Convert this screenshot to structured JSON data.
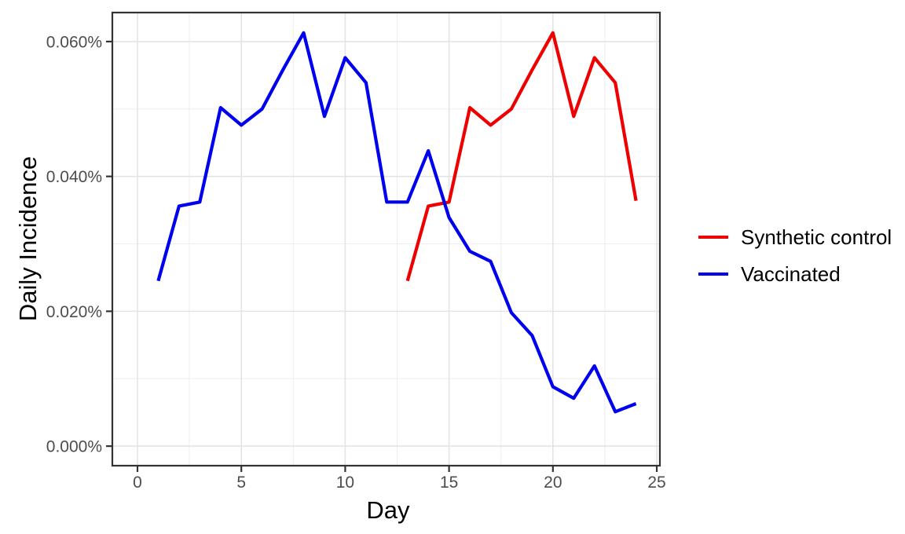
{
  "chart_data": {
    "type": "line",
    "title": "",
    "xlabel": "Day",
    "ylabel": "Daily Incidence",
    "x_ticks": [
      0,
      5,
      10,
      15,
      20,
      25
    ],
    "x_minor_ticks": [
      2.5,
      7.5,
      12.5,
      17.5,
      22.5
    ],
    "y_ticks": [
      {
        "value": 0.0,
        "label": "0.000%"
      },
      {
        "value": 0.02,
        "label": "0.020%"
      },
      {
        "value": 0.04,
        "label": "0.040%"
      },
      {
        "value": 0.06,
        "label": "0.060%"
      }
    ],
    "y_minor_ticks": [
      0.01,
      0.03,
      0.05
    ],
    "xlim": [
      -1.21,
      25.15
    ],
    "ylim": [
      -0.0029,
      0.0643
    ],
    "y_unit": "percent",
    "grid": "major+minor",
    "legend_position": "right",
    "series": [
      {
        "name": "Synthetic control",
        "color": "#EE0000",
        "x": [
          13,
          14,
          15,
          16,
          17,
          18,
          19,
          20,
          21,
          22,
          23,
          24
        ],
        "y": [
          0.0245,
          0.0356,
          0.0362,
          0.0502,
          0.0476,
          0.05,
          0.0558,
          0.0613,
          0.0489,
          0.0576,
          0.0539,
          0.0364
        ]
      },
      {
        "name": "Vaccinated",
        "color": "#0000EE",
        "x": [
          1,
          2,
          3,
          4,
          5,
          6,
          7,
          8,
          9,
          10,
          11,
          12,
          13,
          14,
          15,
          16,
          17,
          18,
          19,
          20,
          21,
          22,
          23,
          24
        ],
        "y": [
          0.0245,
          0.0356,
          0.0362,
          0.0502,
          0.0476,
          0.05,
          0.0558,
          0.0613,
          0.0489,
          0.0576,
          0.0539,
          0.0362,
          0.0362,
          0.0438,
          0.0339,
          0.0289,
          0.0274,
          0.0198,
          0.0164,
          0.0088,
          0.0071,
          0.0119,
          0.0051,
          0.0063
        ]
      }
    ]
  },
  "colors": {
    "background": "#FFFFFF",
    "panel_background": "#FFFFFF",
    "panel_border": "#333333",
    "grid_major": "#E4E4E4",
    "grid_minor": "#EFEFEF",
    "tick_mark": "#333333",
    "tick_label": "#4D4D4D",
    "axis_title": "#000000",
    "legend_text": "#000000"
  }
}
